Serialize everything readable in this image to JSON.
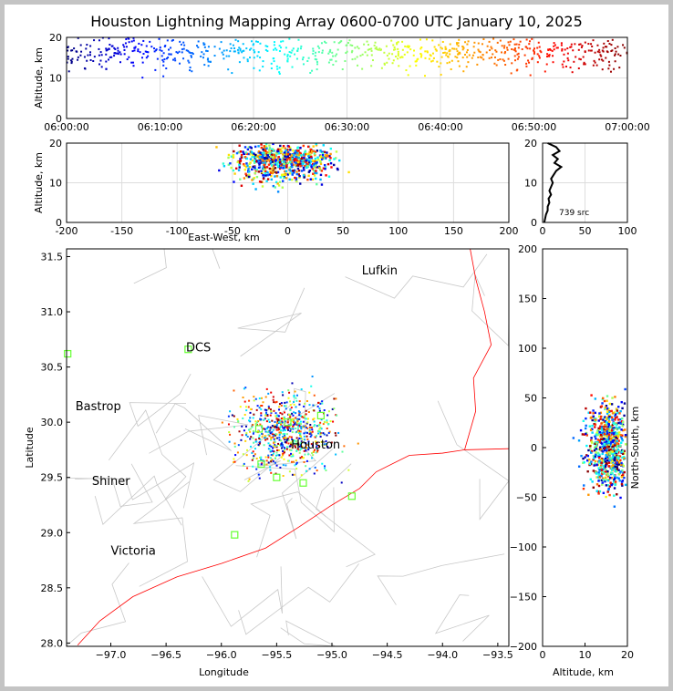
{
  "figure": {
    "title": "Houston Lightning Mapping Array 0600-0700 UTC January 10, 2025",
    "source_count_label": "739 src"
  },
  "chart_data": [
    {
      "type": "scatter",
      "name": "time-height",
      "x_ticks": [
        "06:00:00",
        "06:10:00",
        "06:20:00",
        "06:30:00",
        "06:40:00",
        "06:50:00",
        "07:00:00"
      ],
      "ylabel": "Altitude, km",
      "y_ticks": [
        0,
        10,
        20
      ],
      "ylim": [
        0,
        20
      ],
      "xlim_minutes": [
        0,
        60
      ],
      "grid": true
    },
    {
      "type": "scatter",
      "name": "east-west-height",
      "xlabel": "East-West, km",
      "ylabel": "Altitude, km",
      "x_ticks": [
        -200,
        -150,
        -100,
        -50,
        0,
        50,
        100,
        150,
        200
      ],
      "y_ticks": [
        0,
        10,
        20
      ],
      "xlim": [
        -200,
        200
      ],
      "ylim": [
        0,
        20
      ],
      "grid": true
    },
    {
      "type": "line",
      "name": "altitude-histogram",
      "x_ticks": [
        0,
        50,
        100
      ],
      "y_ticks": [
        0,
        10,
        20
      ],
      "xlim": [
        0,
        100
      ],
      "ylim": [
        0,
        20
      ],
      "altitudes": [
        0,
        1,
        2,
        3,
        4,
        5,
        6,
        7,
        8,
        9,
        10,
        11,
        12,
        13,
        14,
        15,
        16,
        17,
        18,
        19,
        20
      ],
      "counts": [
        2,
        3,
        4,
        6,
        6,
        8,
        7,
        10,
        8,
        10,
        12,
        10,
        13,
        16,
        22,
        14,
        18,
        12,
        20,
        16,
        6
      ]
    },
    {
      "type": "scatter",
      "name": "plan-view",
      "xlabel": "Longitude",
      "ylabel": "Latitude",
      "x_ticks": [
        -97.0,
        -96.5,
        -96.0,
        -95.5,
        -95.0,
        -94.5,
        -94.0,
        -93.5
      ],
      "y_ticks": [
        28.0,
        28.5,
        29.0,
        29.5,
        30.0,
        30.5,
        31.0,
        31.5
      ],
      "xlim": [
        -97.4,
        -93.4
      ],
      "ylim": [
        27.97,
        31.57
      ],
      "cities": [
        {
          "name": "Lufkin",
          "lon": -94.73,
          "lat": 31.34
        },
        {
          "name": "DCS",
          "lon": -96.32,
          "lat": 30.64
        },
        {
          "name": "Bastrop",
          "lon": -97.32,
          "lat": 30.11
        },
        {
          "name": "Houston",
          "lon": -95.37,
          "lat": 29.76
        },
        {
          "name": "Shiner",
          "lon": -97.17,
          "lat": 29.43
        },
        {
          "name": "Victoria",
          "lon": -97.0,
          "lat": 28.8
        }
      ],
      "stations": [
        {
          "lon": -97.39,
          "lat": 30.62
        },
        {
          "lon": -96.3,
          "lat": 30.66
        },
        {
          "lon": -95.66,
          "lat": 29.94
        },
        {
          "lon": -95.4,
          "lat": 30.0
        },
        {
          "lon": -95.1,
          "lat": 30.06
        },
        {
          "lon": -95.64,
          "lat": 29.62
        },
        {
          "lon": -95.5,
          "lat": 29.5
        },
        {
          "lon": -95.26,
          "lat": 29.45
        },
        {
          "lon": -94.82,
          "lat": 29.33
        },
        {
          "lon": -95.88,
          "lat": 28.98
        }
      ]
    },
    {
      "type": "scatter",
      "name": "north-south-height",
      "xlabel": "Altitude, km",
      "ylabel": "North-South, km",
      "x_ticks": [
        0,
        10,
        20
      ],
      "y_ticks": [
        -200,
        -150,
        -100,
        -50,
        0,
        50,
        100,
        150,
        200
      ],
      "xlim": [
        0,
        20
      ],
      "ylim": [
        -200,
        200
      ]
    }
  ]
}
